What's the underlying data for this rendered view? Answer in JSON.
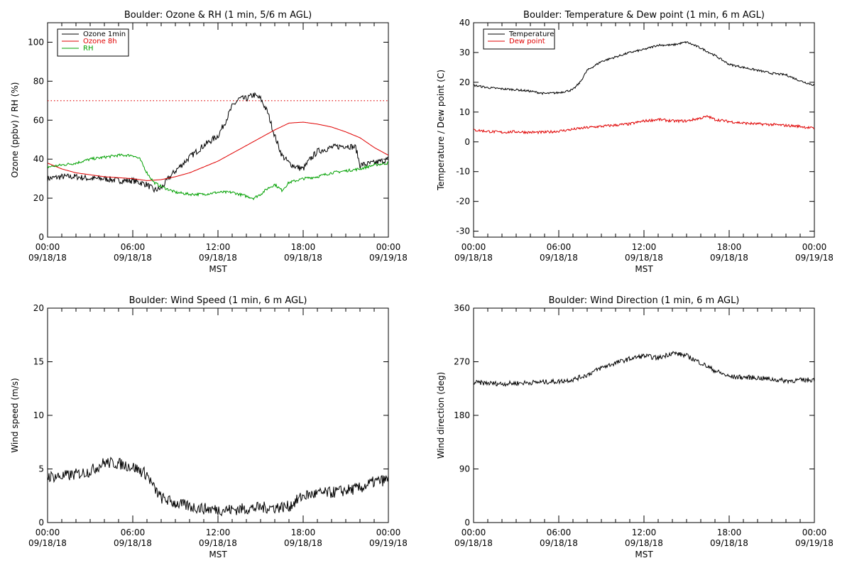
{
  "chart_data": [
    {
      "type": "line",
      "title": "Boulder: Ozone & RH (1 min, 5/6 m AGL)",
      "xlabel": "MST",
      "ylabel": "Ozone (ppbv) / RH (%)",
      "ylim": [
        0,
        110
      ],
      "yticks": [
        "0",
        "20",
        "40",
        "60",
        "80",
        "100"
      ],
      "xlim_hours": [
        0,
        24
      ],
      "xticks": [
        {
          "time": "00:00",
          "date": "09/18/18"
        },
        {
          "time": "06:00",
          "date": "09/18/18"
        },
        {
          "time": "12:00",
          "date": "09/18/18"
        },
        {
          "time": "18:00",
          "date": "09/18/18"
        },
        {
          "time": "00:00",
          "date": "09/19/18"
        }
      ],
      "reference_line": {
        "y": 70,
        "style": "dotted",
        "color": "#e00000"
      },
      "legend": {
        "placement": "top-left"
      },
      "series": [
        {
          "name": "Ozone 1min",
          "color": "#000000",
          "noise": 1.6,
          "points": [
            [
              0,
              30
            ],
            [
              1,
              31
            ],
            [
              2,
              31
            ],
            [
              3,
              30
            ],
            [
              4,
              30
            ],
            [
              5,
              29
            ],
            [
              6,
              29
            ],
            [
              7,
              27
            ],
            [
              7.5,
              24
            ],
            [
              8,
              25
            ],
            [
              8.5,
              30
            ],
            [
              9,
              34
            ],
            [
              10,
              41
            ],
            [
              11,
              47
            ],
            [
              12,
              52
            ],
            [
              12.5,
              59
            ],
            [
              13,
              67
            ],
            [
              13.5,
              71
            ],
            [
              14,
              71
            ],
            [
              14.5,
              73
            ],
            [
              15,
              71
            ],
            [
              15.5,
              64
            ],
            [
              16,
              52
            ],
            [
              16.5,
              42
            ],
            [
              17,
              38
            ],
            [
              17.5,
              36
            ],
            [
              18,
              35
            ],
            [
              18.5,
              40
            ],
            [
              19,
              44
            ],
            [
              20,
              46
            ],
            [
              21,
              47
            ],
            [
              21.7,
              46
            ],
            [
              22,
              37
            ],
            [
              23,
              38
            ],
            [
              24,
              40
            ]
          ]
        },
        {
          "name": "Ozone 8h",
          "color": "#e00000",
          "noise": 0,
          "points": [
            [
              0,
              38
            ],
            [
              1,
              35
            ],
            [
              2,
              33
            ],
            [
              3,
              32
            ],
            [
              4,
              31
            ],
            [
              5,
              30.5
            ],
            [
              6,
              30
            ],
            [
              7,
              29
            ],
            [
              8,
              29.5
            ],
            [
              9,
              31
            ],
            [
              10,
              33
            ],
            [
              11,
              36
            ],
            [
              12,
              39
            ],
            [
              13,
              43
            ],
            [
              14,
              47
            ],
            [
              15,
              51
            ],
            [
              16,
              55
            ],
            [
              17,
              58.5
            ],
            [
              18,
              59
            ],
            [
              19,
              58
            ],
            [
              20,
              56.5
            ],
            [
              21,
              54
            ],
            [
              22,
              51
            ],
            [
              23,
              46
            ],
            [
              24,
              42
            ]
          ]
        },
        {
          "name": "RH",
          "color": "#00a000",
          "noise": 0.7,
          "points": [
            [
              0,
              36
            ],
            [
              1,
              37
            ],
            [
              2,
              38
            ],
            [
              3,
              40
            ],
            [
              4,
              41
            ],
            [
              5,
              42
            ],
            [
              6,
              42
            ],
            [
              6.5,
              40
            ],
            [
              7,
              33
            ],
            [
              7.5,
              28
            ],
            [
              8,
              26
            ],
            [
              9,
              23
            ],
            [
              10,
              22
            ],
            [
              11,
              22
            ],
            [
              12,
              23
            ],
            [
              13,
              23
            ],
            [
              14,
              21
            ],
            [
              14.5,
              20
            ],
            [
              15,
              22
            ],
            [
              15.5,
              25
            ],
            [
              16,
              27
            ],
            [
              16.5,
              24
            ],
            [
              17,
              28
            ],
            [
              18,
              30
            ],
            [
              19,
              31
            ],
            [
              20,
              33
            ],
            [
              21,
              34
            ],
            [
              22,
              35
            ],
            [
              23,
              37
            ],
            [
              24,
              38
            ]
          ]
        }
      ]
    },
    {
      "type": "line",
      "title": "Boulder: Temperature & Dew point (1 min, 6 m AGL)",
      "xlabel": "MST",
      "ylabel": "Temperature / Dew point (C)",
      "ylim": [
        -32,
        40
      ],
      "yticks": [
        "-30",
        "-20",
        "-10",
        "0",
        "10",
        "20",
        "30",
        "40"
      ],
      "xlim_hours": [
        0,
        24
      ],
      "xticks": [
        {
          "time": "00:00",
          "date": "09/18/18"
        },
        {
          "time": "06:00",
          "date": "09/18/18"
        },
        {
          "time": "12:00",
          "date": "09/18/18"
        },
        {
          "time": "18:00",
          "date": "09/18/18"
        },
        {
          "time": "00:00",
          "date": "09/19/18"
        }
      ],
      "legend": {
        "placement": "top-left"
      },
      "series": [
        {
          "name": "Temperature",
          "color": "#000000",
          "noise": 0.35,
          "points": [
            [
              0,
              19
            ],
            [
              1,
              18.2
            ],
            [
              2,
              17.8
            ],
            [
              3,
              17.5
            ],
            [
              4,
              17
            ],
            [
              5,
              16.2
            ],
            [
              6,
              16.5
            ],
            [
              7,
              17.5
            ],
            [
              7.5,
              20
            ],
            [
              8,
              24
            ],
            [
              9,
              27
            ],
            [
              10,
              28.5
            ],
            [
              11,
              30
            ],
            [
              12,
              31
            ],
            [
              13,
              32.5
            ],
            [
              14,
              32.5
            ],
            [
              15,
              33.5
            ],
            [
              16,
              31.5
            ],
            [
              17,
              29
            ],
            [
              18,
              26
            ],
            [
              19,
              25
            ],
            [
              20,
              24
            ],
            [
              21,
              23
            ],
            [
              22,
              22.5
            ],
            [
              23,
              20.5
            ],
            [
              24,
              19
            ]
          ]
        },
        {
          "name": "Dew point",
          "color": "#e00000",
          "noise": 0.45,
          "points": [
            [
              0,
              4
            ],
            [
              1,
              3.5
            ],
            [
              2,
              3.2
            ],
            [
              3,
              3.4
            ],
            [
              4,
              3.2
            ],
            [
              5,
              3.2
            ],
            [
              6,
              3.6
            ],
            [
              7,
              4.2
            ],
            [
              8,
              4.8
            ],
            [
              9,
              5.2
            ],
            [
              10,
              5.6
            ],
            [
              11,
              6
            ],
            [
              12,
              7
            ],
            [
              13,
              7.5
            ],
            [
              14,
              7
            ],
            [
              15,
              7
            ],
            [
              16,
              8
            ],
            [
              16.5,
              8.5
            ],
            [
              17,
              7.5
            ],
            [
              18,
              6.8
            ],
            [
              19,
              6.3
            ],
            [
              20,
              6
            ],
            [
              21,
              5.8
            ],
            [
              22,
              5.5
            ],
            [
              23,
              5.2
            ],
            [
              24,
              4.5
            ]
          ]
        }
      ]
    },
    {
      "type": "line",
      "title": "Boulder: Wind Speed (1 min, 6 m AGL)",
      "xlabel": "MST",
      "ylabel": "Wind speed (m/s)",
      "ylim": [
        0,
        20
      ],
      "yticks": [
        "0",
        "5",
        "10",
        "15",
        "20"
      ],
      "xlim_hours": [
        0,
        24
      ],
      "xticks": [
        {
          "time": "00:00",
          "date": "09/18/18"
        },
        {
          "time": "06:00",
          "date": "09/18/18"
        },
        {
          "time": "12:00",
          "date": "09/18/18"
        },
        {
          "time": "18:00",
          "date": "09/18/18"
        },
        {
          "time": "00:00",
          "date": "09/19/18"
        }
      ],
      "series": [
        {
          "color": "#000000",
          "noise": 0.55,
          "points": [
            [
              0,
              4.3
            ],
            [
              1,
              4.3
            ],
            [
              2,
              4.5
            ],
            [
              3,
              4.8
            ],
            [
              4,
              5.6
            ],
            [
              5,
              5.5
            ],
            [
              6,
              5.2
            ],
            [
              7,
              4.5
            ],
            [
              7.5,
              3.2
            ],
            [
              8,
              2.3
            ],
            [
              9,
              1.8
            ],
            [
              10,
              1.5
            ],
            [
              11,
              1.3
            ],
            [
              12,
              1.2
            ],
            [
              13,
              1.2
            ],
            [
              14,
              1.3
            ],
            [
              15,
              1.4
            ],
            [
              16,
              1.4
            ],
            [
              17,
              1.5
            ],
            [
              17.5,
              2
            ],
            [
              18,
              2.5
            ],
            [
              19,
              2.7
            ],
            [
              20,
              2.8
            ],
            [
              21,
              3
            ],
            [
              22,
              3.2
            ],
            [
              23,
              3.8
            ],
            [
              24,
              4
            ]
          ]
        }
      ]
    },
    {
      "type": "line",
      "title": "Boulder: Wind Direction (1 min, 6 m AGL)",
      "xlabel": "MST",
      "ylabel": "Wind direction (deg)",
      "ylim": [
        0,
        360
      ],
      "yticks": [
        "0",
        "90",
        "180",
        "270",
        "360"
      ],
      "xlim_hours": [
        0,
        24
      ],
      "xticks": [
        {
          "time": "00:00",
          "date": "09/18/18"
        },
        {
          "time": "06:00",
          "date": "09/18/18"
        },
        {
          "time": "12:00",
          "date": "09/18/18"
        },
        {
          "time": "18:00",
          "date": "09/18/18"
        },
        {
          "time": "00:00",
          "date": "09/19/18"
        }
      ],
      "series": [
        {
          "color": "#000000",
          "noise": 4,
          "points": [
            [
              0,
              235
            ],
            [
              2,
              233
            ],
            [
              4,
              235
            ],
            [
              6,
              237
            ],
            [
              7,
              240
            ],
            [
              8,
              248
            ],
            [
              9,
              260
            ],
            [
              10,
              268
            ],
            [
              11,
              275
            ],
            [
              12,
              280
            ],
            [
              13,
              276
            ],
            [
              14,
              285
            ],
            [
              15,
              280
            ],
            [
              16,
              268
            ],
            [
              17,
              255
            ],
            [
              18,
              245
            ],
            [
              20,
              243
            ],
            [
              22,
              238
            ],
            [
              24,
              240
            ]
          ]
        }
      ]
    }
  ]
}
